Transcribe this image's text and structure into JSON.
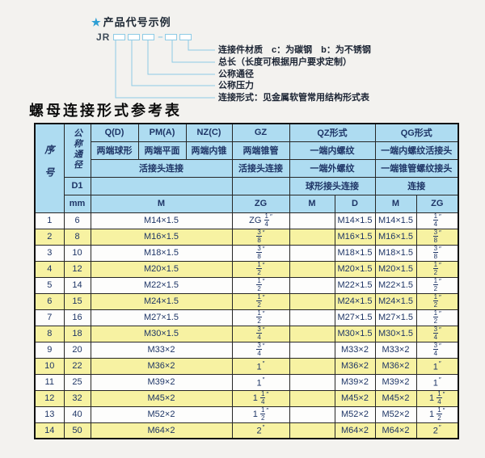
{
  "diagram": {
    "star_icon": "★",
    "title": "产品代号示例",
    "code_prefix": "JR",
    "separator": "–",
    "labels": [
      "连接件材质　c：为碳钢　b：为不锈钢",
      "总长（长度可根据用户要求定制）",
      "公称通径",
      "公称压力",
      "连接形式：见金属软管常用结构形式表"
    ]
  },
  "table": {
    "title": "螺母连接形式参考表",
    "header": {
      "seq": "序号",
      "dn": "公称通径",
      "d1": "D1",
      "mm": "mm",
      "col_q": "Q(D)",
      "col_pm": "PM(A)",
      "col_nz": "NZ(C)",
      "col_gz": "GZ",
      "col_qz": "QZ形式",
      "col_qg": "QG形式",
      "q_desc": "两端球形",
      "pm_desc": "两端平面",
      "nz_desc": "两端内锥",
      "gz_desc": "两端锥管",
      "qz_desc1": "一端内螺纹",
      "qg_desc1": "一端内螺纹活接头",
      "union_conn": "活接头连接",
      "gz_conn": "活接头连接",
      "qz_desc2": "一端外螺纹",
      "qg_desc2": "一端锥管螺纹接头",
      "qz_conn": "球形接头连接",
      "qg_conn": "连接",
      "m_label": "M",
      "gz_zg_label": "ZG",
      "qz_m_label": "M",
      "qz_d_label": "D",
      "qg_m_label": "M",
      "qg_zg_label": "ZG"
    },
    "rows": [
      {
        "seq": "1",
        "dn": "6",
        "m": "M14×1.5",
        "gz": "ZG 1/4″",
        "qz_m": "",
        "qz_d": "M14×1.5",
        "qg_m": "M14×1.5",
        "qg_zg": "1/4″"
      },
      {
        "seq": "2",
        "dn": "8",
        "m": "M16×1.5",
        "gz": "3/8″",
        "qz_m": "",
        "qz_d": "M16×1.5",
        "qg_m": "M16×1.5",
        "qg_zg": "3/8″"
      },
      {
        "seq": "3",
        "dn": "10",
        "m": "M18×1.5",
        "gz": "3/8″",
        "qz_m": "",
        "qz_d": "M18×1.5",
        "qg_m": "M18×1.5",
        "qg_zg": "3/8″"
      },
      {
        "seq": "4",
        "dn": "12",
        "m": "M20×1.5",
        "gz": "1/2″",
        "qz_m": "",
        "qz_d": "M20×1.5",
        "qg_m": "M20×1.5",
        "qg_zg": "1/2″"
      },
      {
        "seq": "5",
        "dn": "14",
        "m": "M22×1.5",
        "gz": "1/2″",
        "qz_m": "",
        "qz_d": "M22×1.5",
        "qg_m": "M22×1.5",
        "qg_zg": "1/2″"
      },
      {
        "seq": "6",
        "dn": "15",
        "m": "M24×1.5",
        "gz": "1/2″",
        "qz_m": "",
        "qz_d": "M24×1.5",
        "qg_m": "M24×1.5",
        "qg_zg": "1/2″"
      },
      {
        "seq": "7",
        "dn": "16",
        "m": "M27×1.5",
        "gz": "1/2″",
        "qz_m": "",
        "qz_d": "M27×1.5",
        "qg_m": "M27×1.5",
        "qg_zg": "1/2″"
      },
      {
        "seq": "8",
        "dn": "18",
        "m": "M30×1.5",
        "gz": "3/4″",
        "qz_m": "",
        "qz_d": "M30×1.5",
        "qg_m": "M30×1.5",
        "qg_zg": "3/4″"
      },
      {
        "seq": "9",
        "dn": "20",
        "m": "M33×2",
        "gz": "3/4″",
        "qz_m": "",
        "qz_d": "M33×2",
        "qg_m": "M33×2",
        "qg_zg": "3/4″"
      },
      {
        "seq": "10",
        "dn": "22",
        "m": "M36×2",
        "gz": "1″",
        "qz_m": "",
        "qz_d": "M36×2",
        "qg_m": "M36×2",
        "qg_zg": "1″"
      },
      {
        "seq": "11",
        "dn": "25",
        "m": "M39×2",
        "gz": "1″",
        "qz_m": "",
        "qz_d": "M39×2",
        "qg_m": "M39×2",
        "qg_zg": "1″"
      },
      {
        "seq": "12",
        "dn": "32",
        "m": "M45×2",
        "gz": "1 1/4″",
        "qz_m": "",
        "qz_d": "M45×2",
        "qg_m": "M45×2",
        "qg_zg": "1 1/4″"
      },
      {
        "seq": "13",
        "dn": "40",
        "m": "M52×2",
        "gz": "1 1/2″",
        "qz_m": "",
        "qz_d": "M52×2",
        "qg_m": "M52×2",
        "qg_zg": "1 1/2″"
      },
      {
        "seq": "14",
        "dn": "50",
        "m": "M64×2",
        "gz": "2″",
        "qz_m": "",
        "qz_d": "M64×2",
        "qg_m": "M64×2",
        "qg_zg": "2″"
      }
    ]
  },
  "colors": {
    "header_bg": "#aedcf1",
    "row_alt_bg": "#f7f2a2",
    "row_bg": "#fdfdfc",
    "line_blue": "#8ecbe6",
    "star_blue": "#2e9fd4",
    "text_navy": "#1e3566",
    "title_black": "#0d0d0d",
    "border_black": "#262626"
  }
}
